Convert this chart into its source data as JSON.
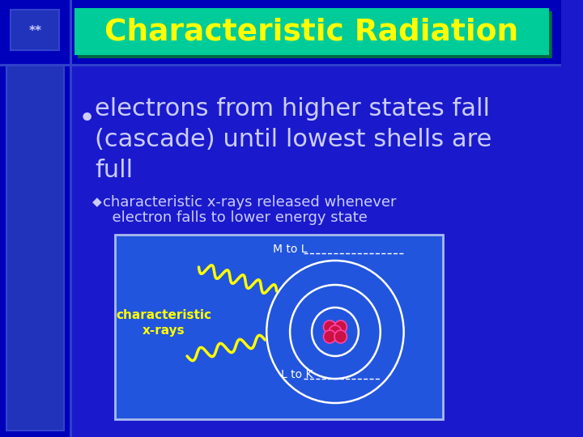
{
  "bg_color": "#1a1acc",
  "left_col_color": "#0000bb",
  "header_color": "#0000bb",
  "title_text": "Characteristic Radiation",
  "title_bg": "#00cc99",
  "title_color": "#ffff00",
  "title_shadow": "#006644",
  "slide_number": "**",
  "slide_num_color": "#ccccff",
  "bullet_color": "#ccccff",
  "bullet_text_line1": "electrons from higher states fall",
  "bullet_text_line2": "(cascade) until lowest shells are",
  "bullet_text_line3": "full",
  "sub_text_line1": "characteristic x-rays released whenever",
  "sub_text_line2": "  electron falls to lower energy state",
  "sub_bullet_diamond": "◆",
  "diagram_box_color": "#2255dd",
  "diagram_box_edge": "#aabbee",
  "char_xrays_label_line1": "characteristic",
  "char_xrays_label_line2": "x-rays",
  "m_to_l_label": "M to L",
  "l_to_k_label": "L to K",
  "orbit_color": "#ffffff",
  "xray_color": "#ffff00",
  "nucleus_color_1": "#cc1144",
  "nucleus_color_2": "#ff44aa",
  "white": "#ffffff",
  "light_blue": "#aabbff",
  "left_strip_color": "#2233bb",
  "sep_line_color": "#3344cc"
}
